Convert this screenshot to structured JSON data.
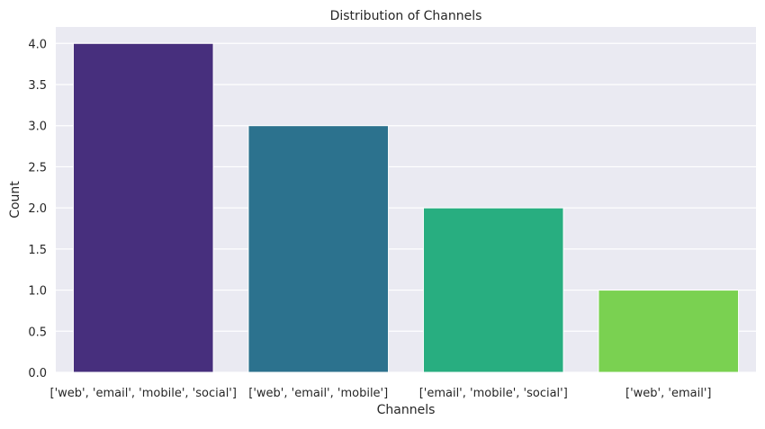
{
  "chart_data": {
    "type": "bar",
    "title": "Distribution of Channels",
    "xlabel": "Channels",
    "ylabel": "Count",
    "categories": [
      "['web', 'email', 'mobile', 'social']",
      "['web', 'email', 'mobile']",
      "['email', 'mobile', 'social']",
      "['web', 'email']"
    ],
    "values": [
      4,
      3,
      2,
      1
    ],
    "colors": [
      "#472f7d",
      "#2c728e",
      "#28ae80",
      "#7ad151"
    ],
    "ylim": [
      0,
      4.2
    ],
    "yticks": [
      "0.0",
      "0.5",
      "1.0",
      "1.5",
      "2.0",
      "2.5",
      "3.0",
      "3.5",
      "4.0"
    ],
    "grid": true,
    "background_color": "#eaeaf2",
    "grid_color": "#ffffff"
  }
}
